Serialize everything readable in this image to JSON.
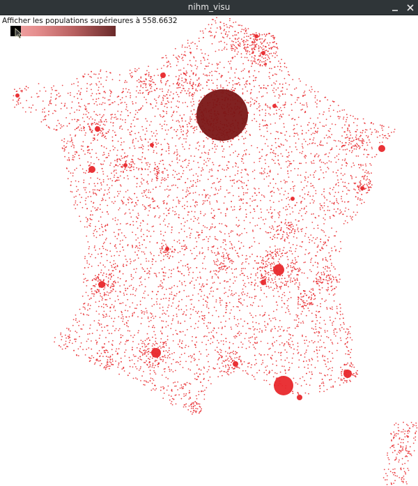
{
  "window": {
    "title": "nihm_visu"
  },
  "filter": {
    "label": "Afficher les populations supérieures à 558.6632",
    "value_fraction": 0.0
  },
  "map": {
    "dot_color": "#e8282c",
    "paris_color": "#7a1616",
    "dot_count_hint": "dense"
  },
  "colors": {
    "titlebar": "#2f3538",
    "slider_start": "#f3a7a7",
    "slider_end": "#6a2a2a"
  }
}
